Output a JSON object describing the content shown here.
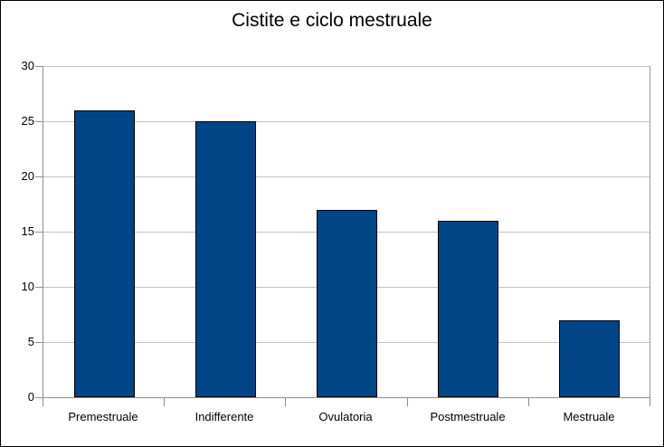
{
  "window": {
    "background": "#ffffff",
    "border_color": "#000000"
  },
  "chart_data": {
    "type": "bar",
    "title": "Cistite e ciclo mestruale",
    "categories": [
      "Premestruale",
      "Indifferente",
      "Ovulatoria",
      "Postmestruale",
      "Mestruale"
    ],
    "values": [
      26,
      25,
      17,
      16,
      7
    ],
    "xlabel": "",
    "ylabel": "",
    "ylim": [
      0,
      30
    ],
    "ytick_step": 5,
    "ytick_labels": [
      "0",
      "5",
      "10",
      "15",
      "20",
      "25",
      "30"
    ],
    "grid": true,
    "legend_position": "none",
    "colors": {
      "bar_fill": "#004586",
      "bar_border": "#000000",
      "gridline": "#c2c2c2",
      "axis": "#8e8e8e",
      "text": "#000000"
    }
  }
}
